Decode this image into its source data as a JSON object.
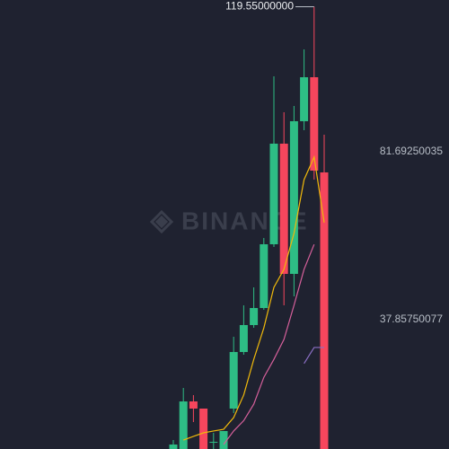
{
  "chart_data": {
    "type": "candlestick",
    "watermark": "BINANCE",
    "categories": [
      null,
      null,
      null,
      null,
      null,
      null,
      null,
      null,
      null,
      null,
      null,
      null,
      null,
      null,
      null,
      null
    ],
    "open": [
      4.1,
      4.1,
      16.52,
      14.65,
      5.97,
      4.1,
      14.65,
      29.42,
      36.45,
      40.9,
      57.54,
      83.8,
      49.81,
      89.66,
      101.14,
      76.3
    ],
    "high": [
      6.44,
      20.04,
      18.16,
      14.65,
      8.32,
      8.79,
      33.4,
      41.6,
      46.29,
      59.18,
      101.38,
      92.0,
      93.64,
      108.41,
      119.55,
      86.14
    ],
    "low": [
      4.1,
      4.1,
      11.13,
      4.1,
      4.1,
      4.1,
      13.48,
      28.71,
      35.74,
      40.43,
      56.84,
      41.6,
      43.95,
      87.31,
      74.42,
      4.1
    ],
    "close": [
      5.27,
      16.52,
      14.65,
      4.1,
      5.97,
      8.79,
      29.42,
      36.45,
      40.9,
      57.54,
      83.8,
      49.81,
      89.66,
      101.14,
      76.76,
      4.1
    ],
    "up_color": "#2ebd85",
    "down_color": "#f6465d",
    "series": [
      {
        "color": "#f0b90b",
        "values": [
          null,
          6.44,
          7.4,
          8.32,
          8.8,
          9.25,
          12.3,
          18.2,
          27.5,
          35.7,
          46.3,
          51.0,
          60.4,
          74.4,
          80.3,
          63.2
        ]
      },
      {
        "color": "#d6609b",
        "values": [
          null,
          null,
          null,
          null,
          null,
          5.3,
          8.8,
          11.5,
          15.8,
          22.8,
          27.5,
          32.7,
          41.6,
          51.0,
          57.5,
          null
        ]
      },
      {
        "color": "#8b6fc4",
        "values": [
          null,
          null,
          null,
          null,
          null,
          null,
          null,
          null,
          null,
          null,
          null,
          null,
          null,
          26.4,
          30.6,
          30.6
        ]
      }
    ],
    "ylim": [
      4.1,
      121.3
    ],
    "yticks": [
      81.69250035,
      37.85750077
    ],
    "annotation": {
      "value": 119.55,
      "label": "119.55000000"
    },
    "grid": false
  }
}
